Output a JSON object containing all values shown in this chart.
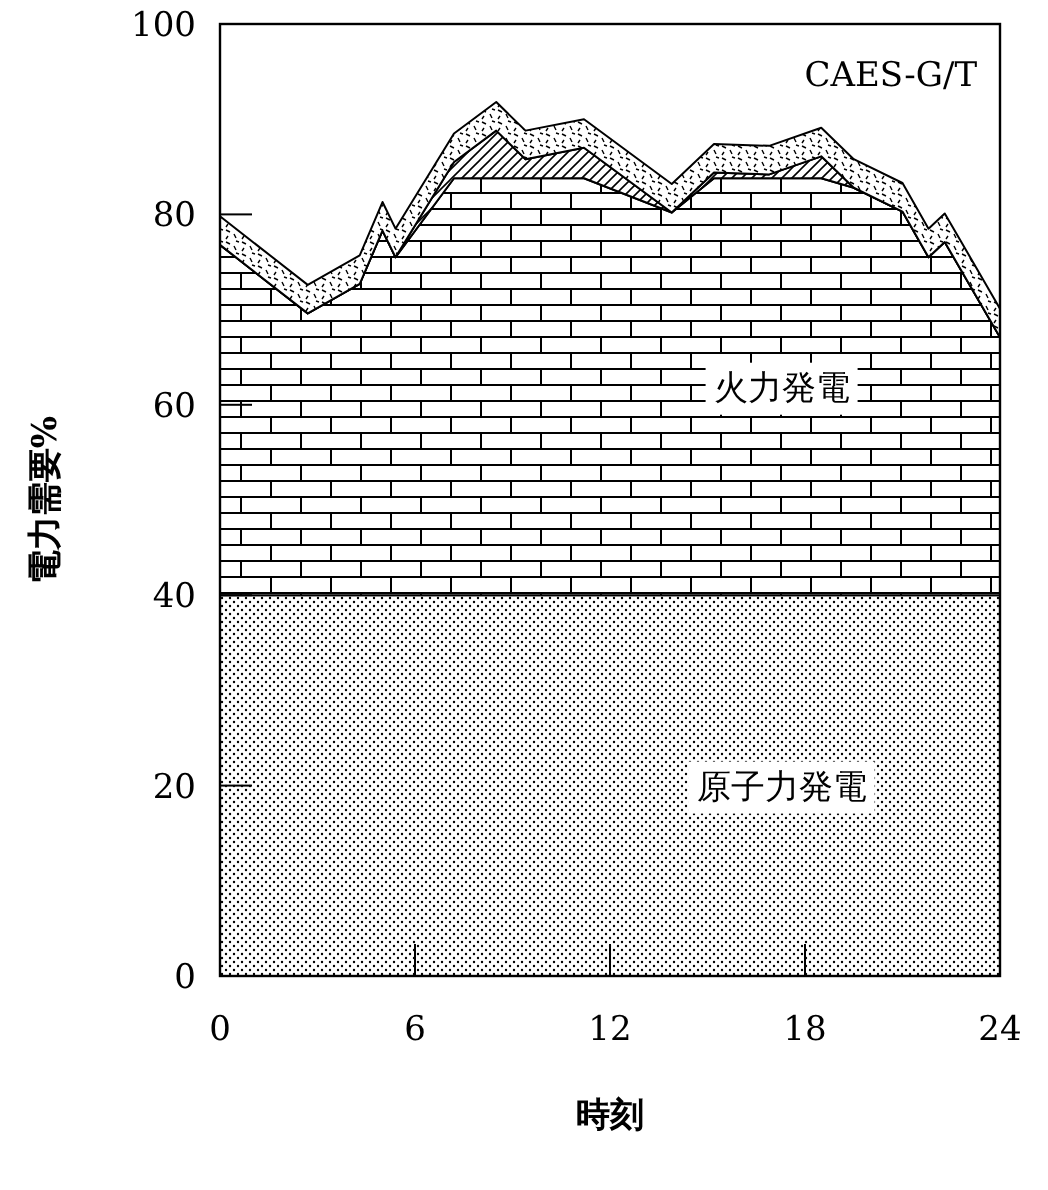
{
  "chart_data": {
    "type": "area",
    "stacked": true,
    "xlabel": "時刻",
    "ylabel": "電力需要%",
    "x": [
      0,
      2.7,
      4.3,
      5.0,
      5.4,
      7.2,
      8.5,
      9.4,
      11.2,
      13.9,
      15.2,
      16.9,
      18.5,
      19.5,
      21.0,
      21.8,
      22.3,
      24
    ],
    "series": [
      {
        "name": "原子力発電",
        "color": "#000000",
        "values": [
          40,
          40,
          40,
          40,
          40,
          40,
          40,
          40,
          40,
          40,
          40,
          40,
          40,
          40,
          40,
          40,
          40,
          40
        ]
      },
      {
        "name": "火力発電",
        "color": "#000000",
        "values": [
          36.8,
          29.6,
          32.7,
          38.3,
          35.5,
          43.8,
          43.8,
          43.8,
          43.8,
          40.2,
          43.8,
          43.8,
          43.8,
          42.8,
          40.3,
          35.5,
          37.1,
          27.1
        ]
      },
      {
        "color": "#000000",
        "values": [
          0,
          0,
          0,
          0,
          0,
          1.7,
          5.0,
          2.0,
          3.2,
          0,
          0.6,
          0.4,
          2.3,
          0,
          0,
          0,
          0,
          0
        ]
      },
      {
        "name": "CAES-G/T",
        "color": "#000000",
        "values": [
          3,
          3,
          3,
          3,
          3,
          3,
          3,
          3,
          3,
          3,
          3,
          3,
          3,
          3,
          3,
          3,
          3,
          3
        ]
      }
    ],
    "xlim": [
      0,
      24
    ],
    "xticks": [
      0,
      6,
      12,
      18,
      24
    ],
    "ylim": [
      0,
      100
    ],
    "yticks": [
      0,
      20,
      40,
      60,
      80,
      100
    ],
    "grid": false
  }
}
